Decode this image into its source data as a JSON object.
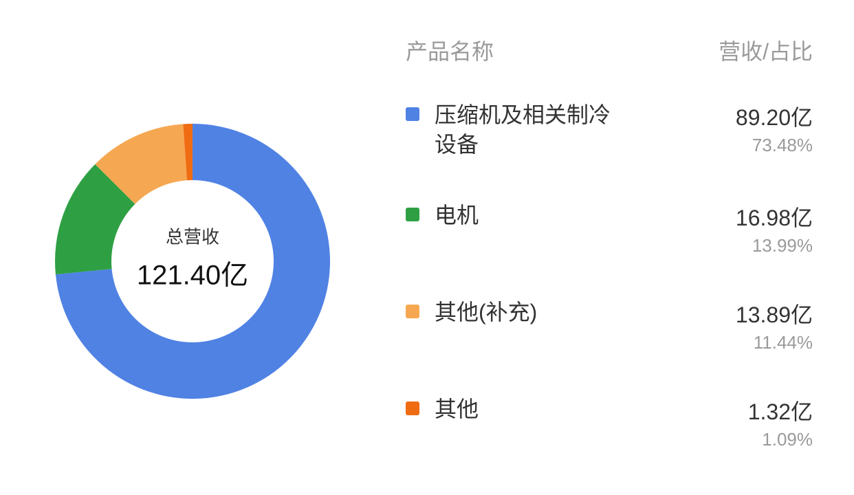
{
  "chart": {
    "type": "donut",
    "background_color": "#ffffff",
    "ring_outer_radius": 200,
    "ring_inner_radius": 118,
    "start_angle_deg": -90,
    "direction": "clockwise",
    "center_label": "总营收",
    "center_value": "121.40亿",
    "center_label_fontsize": 26,
    "center_value_fontsize": 40,
    "center_label_color": "#333333",
    "center_value_color": "#111111"
  },
  "header": {
    "col_name": "产品名称",
    "col_value": "营收/占比",
    "fontsize": 32,
    "color": "#9a9a9a"
  },
  "items": [
    {
      "name": "压缩机及相关制冷设备",
      "value": "89.20亿",
      "pct": "73.48%",
      "pct_num": 73.48,
      "color": "#5082e4"
    },
    {
      "name": "电机",
      "value": "16.98亿",
      "pct": "13.99%",
      "pct_num": 13.99,
      "color": "#2ea043"
    },
    {
      "name": "其他(补充)",
      "value": "13.89亿",
      "pct": "11.44%",
      "pct_num": 11.44,
      "color": "#f5a851"
    },
    {
      "name": "其他",
      "value": "1.32亿",
      "pct": "1.09%",
      "pct_num": 1.09,
      "color": "#ef6c13"
    }
  ],
  "legend_style": {
    "name_fontsize": 32,
    "name_color": "#333333",
    "value_fontsize": 32,
    "value_color": "#333333",
    "pct_fontsize": 26,
    "pct_color": "#9a9a9a",
    "swatch_size": 20,
    "swatch_radius": 3,
    "row_gap": 60
  }
}
